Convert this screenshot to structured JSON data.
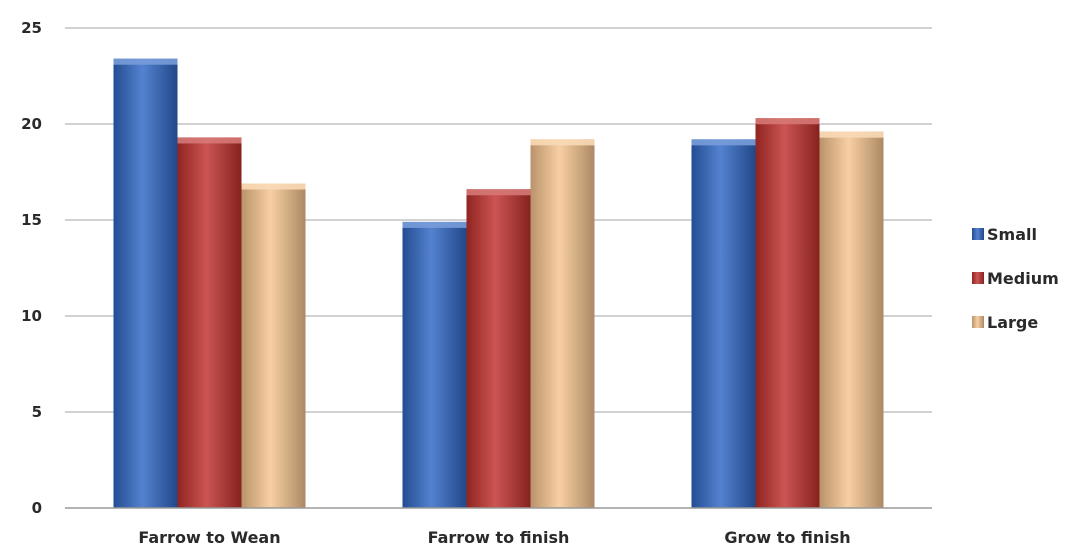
{
  "chart_data": {
    "type": "bar",
    "title": "",
    "xlabel": "",
    "ylabel": "",
    "categories": [
      "Farrow to Wean",
      "Farrow to finish",
      "Grow to finish"
    ],
    "series": [
      {
        "name": "Small",
        "values": [
          23.4,
          14.9,
          19.2
        ],
        "color": "#2f67c4"
      },
      {
        "name": "Medium",
        "values": [
          19.3,
          16.6,
          20.3
        ],
        "color": "#c0302c"
      },
      {
        "name": "Large",
        "values": [
          16.9,
          19.2,
          19.6
        ],
        "color": "#f6c48f"
      }
    ],
    "ylim": [
      0,
      25
    ],
    "yticks": [
      0,
      5,
      10,
      15,
      20,
      25
    ],
    "grid": true,
    "legend": "right"
  }
}
